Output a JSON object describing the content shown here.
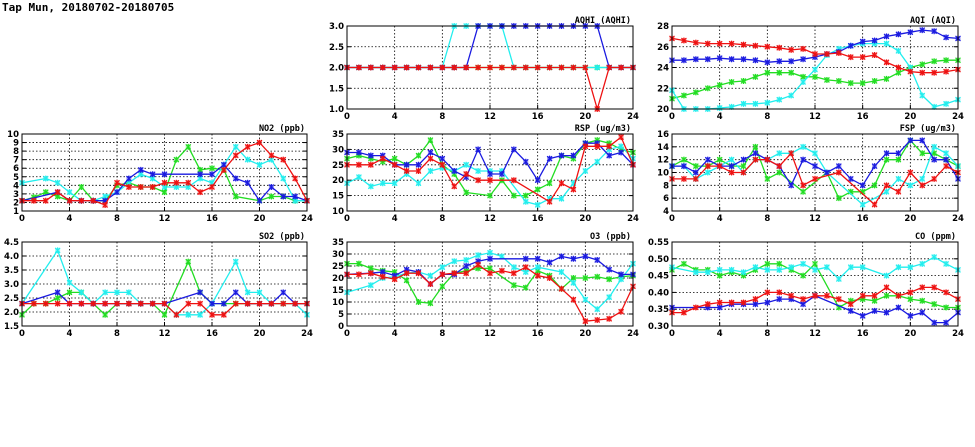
{
  "title": "Tap Mun, 20180702-20180705",
  "colors": {
    "green": "#22dd22",
    "cyan": "#22eeee",
    "blue": "#1a1ae0",
    "red": "#ee1111"
  },
  "chart_data": [
    {
      "id": "aqhi",
      "type": "line",
      "title": "AQHI (AQHI)",
      "xlim": [
        0,
        24
      ],
      "xticks": [
        "0",
        "4",
        "8",
        "12",
        "16",
        "20",
        "24"
      ],
      "ylim": [
        1,
        3
      ],
      "yticks": [
        "1.0",
        "1.5",
        "2.0",
        "2.5",
        "3.0"
      ],
      "grid": true,
      "series": [
        {
          "color": "green",
          "values": [
            2,
            2,
            2,
            2,
            2,
            2,
            2,
            2,
            2,
            2,
            2,
            2,
            2,
            2,
            2,
            2,
            2,
            2,
            2,
            2,
            2,
            2,
            2,
            2,
            2
          ]
        },
        {
          "color": "cyan",
          "values": [
            2,
            2,
            2,
            2,
            2,
            2,
            2,
            2,
            2,
            3,
            3,
            3,
            3,
            3,
            2,
            2,
            2,
            2,
            2,
            2,
            2,
            2,
            2,
            2,
            2
          ]
        },
        {
          "color": "blue",
          "values": [
            2,
            2,
            2,
            2,
            2,
            2,
            2,
            2,
            2,
            2,
            2,
            3,
            3,
            3,
            3,
            3,
            3,
            3,
            3,
            3,
            3,
            3,
            2,
            2,
            2
          ]
        },
        {
          "color": "red",
          "values": [
            2,
            2,
            2,
            2,
            2,
            2,
            2,
            2,
            2,
            2,
            2,
            2,
            2,
            2,
            2,
            2,
            2,
            2,
            2,
            2,
            2,
            1,
            2,
            2,
            2
          ]
        }
      ]
    },
    {
      "id": "aqi",
      "type": "line",
      "title": "AQI (AQI)",
      "xlim": [
        0,
        24
      ],
      "xticks": [
        "0",
        "4",
        "8",
        "12",
        "16",
        "20",
        "24"
      ],
      "ylim": [
        20,
        28
      ],
      "yticks": [
        "20",
        "22",
        "24",
        "26",
        "28"
      ],
      "grid": true,
      "series": [
        {
          "color": "green",
          "values": [
            21.0,
            21.3,
            21.6,
            22.0,
            22.3,
            22.6,
            22.7,
            23.1,
            23.5,
            23.5,
            23.5,
            23.1,
            23.1,
            22.8,
            22.7,
            22.5,
            22.5,
            22.7,
            22.9,
            23.5,
            24.0,
            24.3,
            24.6,
            24.7,
            24.7
          ]
        },
        {
          "color": "cyan",
          "values": [
            21.8,
            20.0,
            20.0,
            20.0,
            20.1,
            20.2,
            20.5,
            20.5,
            20.6,
            20.9,
            21.3,
            22.6,
            23.8,
            25.2,
            25.8,
            26.1,
            26.3,
            26.3,
            26.3,
            25.6,
            24.0,
            21.3,
            20.2,
            20.5,
            20.9
          ]
        },
        {
          "color": "blue",
          "values": [
            24.7,
            24.7,
            24.8,
            24.8,
            24.9,
            24.8,
            24.8,
            24.7,
            24.5,
            24.6,
            24.6,
            24.8,
            25.0,
            25.3,
            25.5,
            26.1,
            26.5,
            26.6,
            27.0,
            27.2,
            27.4,
            27.6,
            27.5,
            26.9,
            26.8
          ]
        },
        {
          "color": "red",
          "values": [
            26.8,
            26.6,
            26.4,
            26.3,
            26.3,
            26.3,
            26.2,
            26.1,
            26.0,
            25.9,
            25.7,
            25.8,
            25.3,
            25.3,
            25.4,
            25.0,
            25.0,
            25.2,
            24.5,
            24.0,
            23.6,
            23.5,
            23.5,
            23.6,
            23.8
          ]
        }
      ]
    },
    {
      "id": "no2",
      "type": "line",
      "title": "NO2 (ppb)",
      "xlim": [
        0,
        24
      ],
      "xticks": [
        "0",
        "4",
        "8",
        "12",
        "16",
        "20",
        "24"
      ],
      "ylim": [
        1,
        10
      ],
      "yticks": [
        "1",
        "2",
        "3",
        "4",
        "5",
        "6",
        "7",
        "8",
        "9",
        "10"
      ],
      "grid": true,
      "series": [
        {
          "color": "green",
          "values": [
            2.2,
            2.6,
            3.2,
            2.7,
            2.2,
            3.8,
            2.2,
            2.2,
            4.0,
            4.3,
            3.8,
            3.8,
            3.2,
            7.0,
            8.5,
            5.8,
            6.0,
            5.8,
            2.7,
            null,
            2.2,
            2.7,
            2.7,
            2.2,
            2.2
          ]
        },
        {
          "color": "cyan",
          "values": [
            4.3,
            null,
            4.8,
            4.3,
            3.2,
            2.2,
            2.2,
            2.7,
            3.2,
            4.3,
            5.3,
            4.8,
            3.8,
            3.8,
            3.8,
            4.8,
            4.3,
            6.4,
            8.5,
            7.0,
            6.4,
            7.0,
            4.8,
            2.2,
            2.2
          ]
        },
        {
          "color": "blue",
          "values": [
            2.2,
            null,
            null,
            3.2,
            2.2,
            2.2,
            2.2,
            2.2,
            3.2,
            4.8,
            5.8,
            5.3,
            5.3,
            null,
            null,
            5.3,
            5.3,
            6.4,
            4.8,
            4.3,
            2.2,
            3.8,
            2.7,
            2.7,
            2.2
          ]
        },
        {
          "color": "red",
          "values": [
            2.2,
            2.2,
            2.2,
            3.2,
            2.2,
            2.2,
            2.2,
            1.7,
            4.3,
            3.8,
            3.8,
            3.8,
            4.3,
            4.3,
            4.3,
            3.2,
            3.8,
            5.8,
            7.5,
            8.5,
            9.0,
            7.5,
            7.0,
            4.8,
            2.2
          ]
        }
      ]
    },
    {
      "id": "rsp",
      "type": "line",
      "title": "RSP (ug/m3)",
      "xlim": [
        0,
        24
      ],
      "xticks": [
        "0",
        "4",
        "8",
        "12",
        "16",
        "20",
        "24"
      ],
      "ylim": [
        10,
        35
      ],
      "yticks": [
        "10",
        "15",
        "20",
        "25",
        "30",
        "35"
      ],
      "grid": true,
      "series": [
        {
          "color": "green",
          "values": [
            27,
            28,
            27,
            26,
            27,
            25,
            28,
            33,
            25,
            22,
            16,
            null,
            15,
            20,
            15,
            15,
            17,
            19,
            28,
            27,
            32,
            33,
            32,
            30,
            29
          ]
        },
        {
          "color": "cyan",
          "values": [
            19,
            21,
            18,
            19,
            19,
            22,
            19,
            23,
            24,
            23,
            25,
            23,
            23,
            23,
            null,
            13,
            12,
            14,
            14,
            19,
            23,
            26,
            30,
            31,
            27
          ]
        },
        {
          "color": "blue",
          "values": [
            29,
            29,
            28,
            28,
            25,
            25,
            25,
            29,
            27,
            23,
            21,
            30,
            22,
            22,
            30,
            26,
            20,
            27,
            28,
            28,
            32,
            32,
            28,
            29,
            25
          ]
        },
        {
          "color": "red",
          "values": [
            25,
            25,
            25,
            27,
            25,
            23,
            23,
            27,
            25,
            18,
            22,
            20,
            20,
            null,
            20,
            null,
            null,
            13,
            19,
            17,
            31,
            31,
            31,
            34,
            25
          ]
        }
      ]
    },
    {
      "id": "fsp",
      "type": "line",
      "title": "FSP (ug/m3)",
      "xlim": [
        0,
        24
      ],
      "xticks": [
        "0",
        "4",
        "8",
        "12",
        "16",
        "20",
        "24"
      ],
      "ylim": [
        4,
        16
      ],
      "yticks": [
        "4",
        "6",
        "8",
        "10",
        "12",
        "14",
        "16"
      ],
      "grid": true,
      "series": [
        {
          "color": "green",
          "values": [
            11,
            12,
            11,
            11,
            12,
            11,
            11,
            14,
            9,
            10,
            null,
            7,
            null,
            10,
            6,
            7,
            7,
            8,
            12,
            12,
            15,
            13,
            13,
            12,
            11
          ]
        },
        {
          "color": "cyan",
          "values": [
            11,
            11,
            9,
            10,
            11,
            12,
            10,
            12,
            12,
            13,
            13,
            14,
            13,
            10,
            null,
            null,
            5,
            null,
            7,
            9,
            8,
            9,
            14,
            13,
            11
          ]
        },
        {
          "color": "blue",
          "values": [
            11,
            11,
            10,
            12,
            11,
            11,
            12,
            13,
            12,
            11,
            8,
            12,
            11,
            10,
            11,
            9,
            8,
            11,
            13,
            13,
            15,
            15,
            12,
            12,
            9
          ]
        },
        {
          "color": "red",
          "values": [
            9,
            9,
            9,
            11,
            11,
            10,
            10,
            12,
            12,
            11,
            13,
            8,
            9,
            null,
            10,
            null,
            null,
            5,
            8,
            7,
            10,
            8,
            9,
            11,
            10
          ]
        }
      ]
    },
    {
      "id": "so2",
      "type": "line",
      "title": "SO2 (ppb)",
      "xlim": [
        0,
        24
      ],
      "xticks": [
        "0",
        "4",
        "8",
        "12",
        "16",
        "20",
        "24"
      ],
      "ylim": [
        1.5,
        4.5
      ],
      "yticks": [
        "1.5",
        "2.0",
        "2.5",
        "3.0",
        "3.5",
        "4.0",
        "4.5"
      ],
      "grid": true,
      "series": [
        {
          "color": "green",
          "values": [
            1.9,
            2.3,
            2.3,
            2.5,
            2.7,
            2.7,
            2.3,
            1.9,
            2.3,
            2.3,
            2.3,
            2.3,
            1.9,
            null,
            3.8,
            2.7,
            2.3,
            2.3,
            2.3,
            2.3,
            2.3,
            2.3,
            2.3,
            2.3,
            2.3
          ]
        },
        {
          "color": "cyan",
          "values": [
            2.3,
            null,
            null,
            4.2,
            3.05,
            2.7,
            2.3,
            2.7,
            2.7,
            2.7,
            2.3,
            2.3,
            2.3,
            1.9,
            1.9,
            1.9,
            2.3,
            null,
            3.8,
            2.7,
            2.7,
            2.3,
            2.3,
            2.3,
            1.9
          ]
        },
        {
          "color": "blue",
          "values": [
            2.3,
            null,
            null,
            2.7,
            2.3,
            2.3,
            2.3,
            2.3,
            2.3,
            2.3,
            2.3,
            2.3,
            2.3,
            null,
            null,
            2.7,
            2.3,
            2.3,
            2.7,
            2.3,
            2.3,
            2.3,
            2.7,
            2.3,
            2.3
          ]
        },
        {
          "color": "red",
          "values": [
            2.3,
            2.3,
            2.3,
            2.3,
            2.3,
            2.3,
            2.3,
            2.3,
            2.3,
            2.3,
            2.3,
            2.3,
            2.3,
            1.9,
            2.3,
            2.3,
            1.9,
            1.9,
            2.3,
            2.3,
            2.3,
            2.3,
            2.3,
            2.3,
            2.3
          ]
        }
      ]
    },
    {
      "id": "o3",
      "type": "line",
      "title": "O3 (ppb)",
      "xlim": [
        0,
        24
      ],
      "xticks": [
        "0",
        "4",
        "8",
        "12",
        "16",
        "20",
        "24"
      ],
      "ylim": [
        0,
        35
      ],
      "yticks": [
        "0",
        "5",
        "10",
        "15",
        "20",
        "25",
        "30",
        "35"
      ],
      "grid": true,
      "series": [
        {
          "color": "green",
          "values": [
            26,
            26,
            24,
            23,
            22.5,
            19,
            10,
            9.5,
            16.5,
            22,
            23,
            24,
            24,
            null,
            17,
            16,
            23,
            21,
            15.5,
            20,
            20,
            20.5,
            19.5,
            20.5,
            21
          ]
        },
        {
          "color": "cyan",
          "values": [
            14,
            null,
            17,
            20,
            20.5,
            22,
            22.5,
            21,
            24.5,
            27,
            27.5,
            29.5,
            30.5,
            29,
            24.5,
            22.5,
            24.5,
            null,
            22.5,
            18,
            11,
            7,
            12,
            19.5,
            26
          ]
        },
        {
          "color": "blue",
          "values": [
            21.5,
            null,
            22,
            22.5,
            21,
            23.5,
            22.5,
            17.5,
            21.5,
            21.5,
            25,
            27,
            28,
            null,
            null,
            28,
            28,
            26.5,
            29,
            28,
            29,
            27.5,
            23.5,
            21.5,
            21.5
          ]
        },
        {
          "color": "red",
          "values": [
            21.5,
            21.5,
            22,
            20.5,
            19.5,
            22,
            22,
            17.5,
            21.5,
            22,
            22,
            25.5,
            22,
            23,
            22,
            24.5,
            21,
            20,
            15.5,
            11,
            2,
            2.5,
            3,
            6,
            16.5
          ]
        }
      ]
    },
    {
      "id": "co",
      "type": "line",
      "title": "CO (ppm)",
      "xlim": [
        0,
        24
      ],
      "xticks": [
        "0",
        "4",
        "8",
        "12",
        "16",
        "20",
        "24"
      ],
      "ylim": [
        0.3,
        0.55
      ],
      "yticks": [
        "0.30",
        "0.35",
        "0.40",
        "0.45",
        "0.50",
        "0.55"
      ],
      "grid": true,
      "series": [
        {
          "color": "green",
          "values": [
            0.467,
            0.485,
            0.467,
            0.467,
            0.45,
            0.46,
            0.45,
            0.467,
            0.485,
            0.485,
            0.467,
            0.45,
            0.485,
            null,
            0.355,
            0.375,
            0.38,
            0.375,
            0.39,
            0.39,
            0.38,
            0.375,
            0.365,
            0.355,
            0.355
          ]
        },
        {
          "color": "cyan",
          "values": [
            0.475,
            null,
            0.46,
            0.46,
            0.467,
            0.467,
            0.46,
            0.475,
            0.467,
            0.467,
            0.475,
            0.485,
            0.467,
            0.475,
            0.44,
            0.475,
            0.475,
            null,
            0.45,
            0.475,
            0.475,
            0.485,
            0.505,
            0.485,
            0.467
          ]
        },
        {
          "color": "blue",
          "values": [
            0.355,
            null,
            null,
            0.355,
            0.355,
            0.365,
            0.365,
            0.365,
            0.37,
            0.38,
            0.38,
            0.365,
            0.39,
            null,
            null,
            0.345,
            0.33,
            0.345,
            0.34,
            0.355,
            0.33,
            0.34,
            0.31,
            0.31,
            0.34
          ]
        },
        {
          "color": "red",
          "values": [
            0.34,
            0.34,
            0.355,
            0.365,
            0.37,
            0.37,
            0.37,
            0.38,
            0.4,
            0.4,
            0.39,
            0.38,
            0.39,
            0.39,
            0.38,
            0.365,
            0.39,
            0.39,
            0.415,
            0.39,
            0.4,
            0.415,
            0.415,
            0.4,
            0.38
          ]
        }
      ]
    }
  ]
}
